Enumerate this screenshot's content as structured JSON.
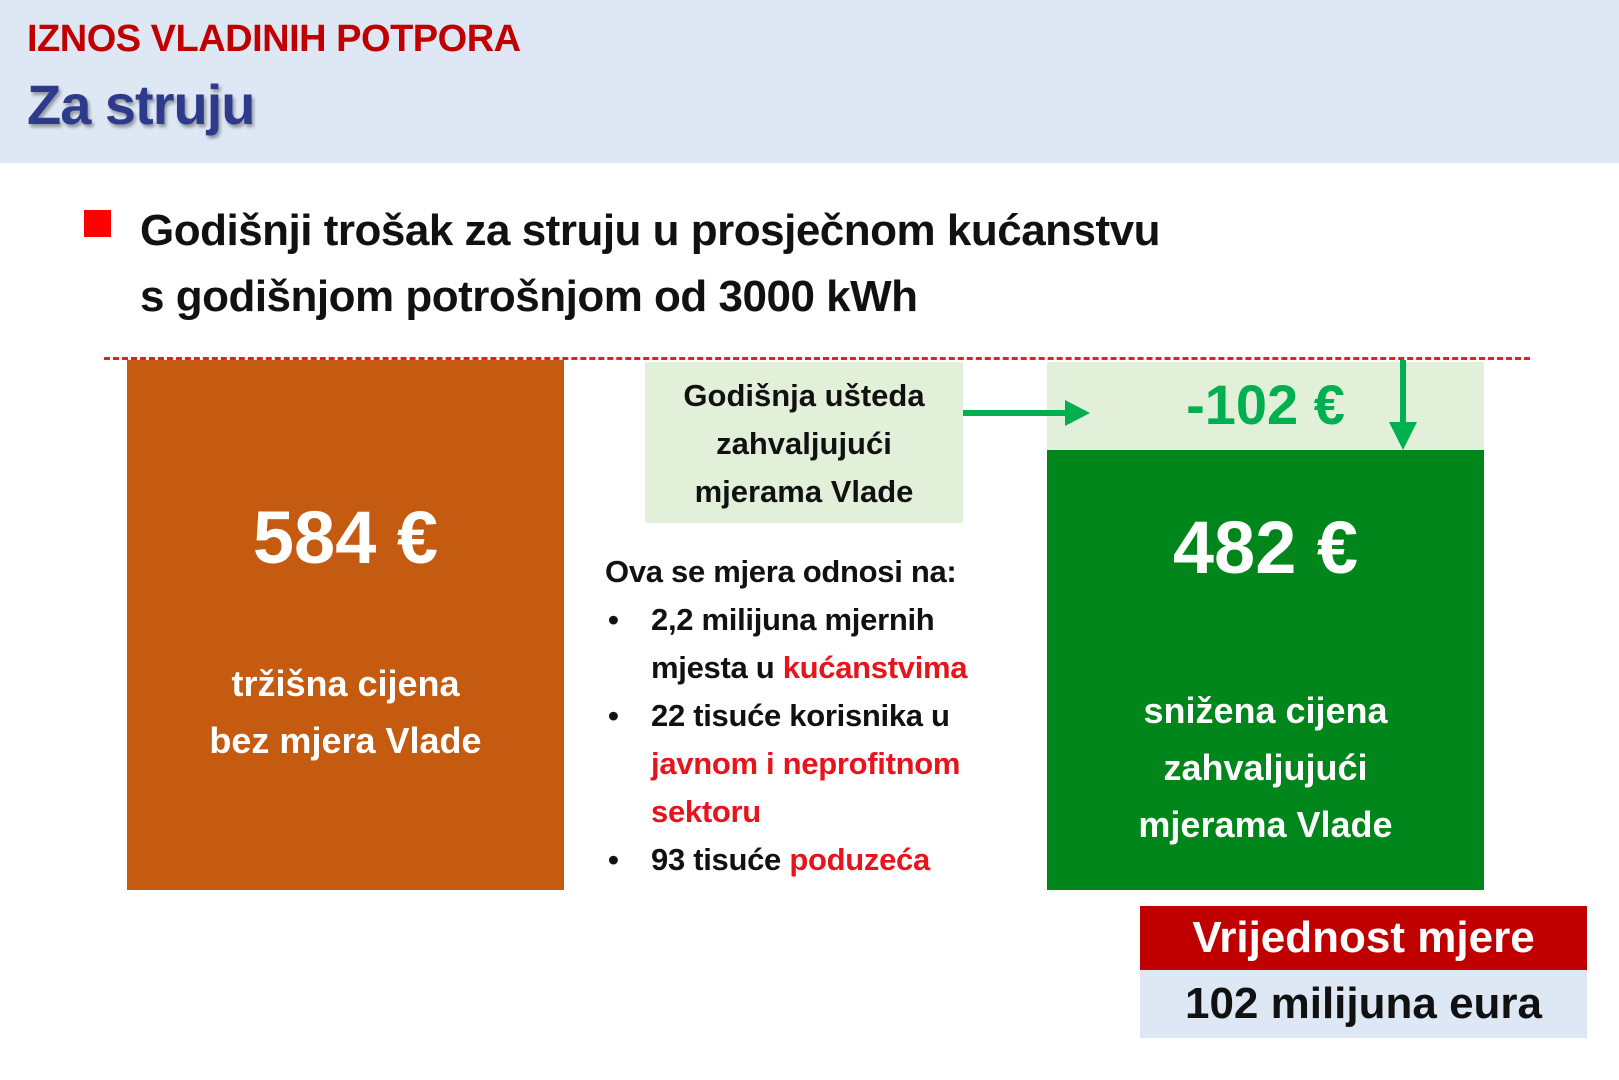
{
  "header": {
    "super_title": "IZNOS VLADINIH POTPORA",
    "title": "Za struju"
  },
  "headline": {
    "line1": "Godišnji trošak za struju u prosječnom kućanstvu",
    "line2": "s godišnjom potrošnjom od 3000 kWh"
  },
  "market": {
    "price": "584 €",
    "caption_line1": "tržišna cijena",
    "caption_line2": "bez mjera Vlade"
  },
  "savings": {
    "label_line1": "Godišnja ušteda",
    "label_line2": "zahvaljujući",
    "label_line3": "mjerama Vlade",
    "value": "-102 €"
  },
  "reduced": {
    "price": "482 €",
    "caption_line1": "snižena cijena",
    "caption_line2": "zahvaljujući",
    "caption_line3": "mjerama Vlade"
  },
  "scope": {
    "intro": "Ova se mjera odnosi na:",
    "bullet_char": "•",
    "item1_text": "2,2 milijuna mjernih mjesta u",
    "item1_highlight": "kućanstvima",
    "item2_text": "22 tisuće korisnika u",
    "item2_highlight": "javnom i neprofitnom sektoru",
    "item3_text": "93 tisuće",
    "item3_highlight": "poduzeća"
  },
  "measure_value": {
    "title": "Vrijednost mjere",
    "amount": "102 milijuna eura"
  },
  "colors": {
    "market_box": "#c55a11",
    "reduced_box": "#00861a",
    "savings_text": "#00b050",
    "savings_bg": "#e2f0d9",
    "highlight_red": "#e8141c",
    "title_red": "#c00000",
    "title_blue": "#2e3a8c",
    "header_bg": "#dde8f4"
  },
  "icons": {
    "right_arrow": "arrow-right-icon",
    "down_arrow": "arrow-down-icon",
    "bullet": "red-square-bullet-icon"
  }
}
